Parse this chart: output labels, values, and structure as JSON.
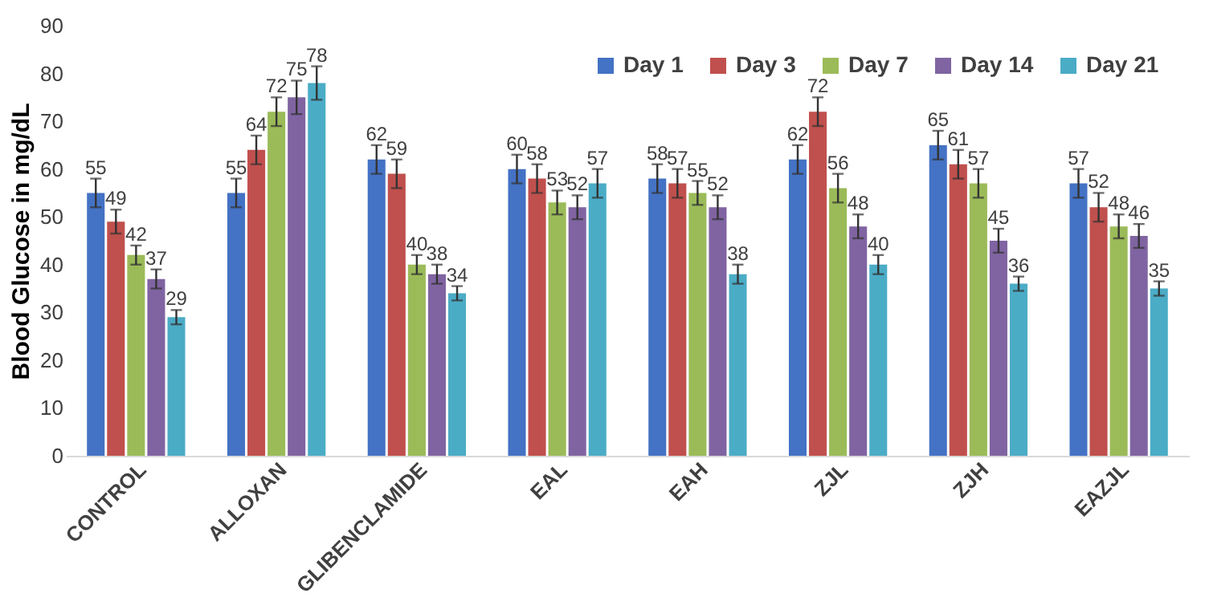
{
  "chart_data": {
    "type": "bar",
    "ylabel": "Blood Glucose in mg/dL",
    "categories": [
      "CONTROL",
      "ALLOXAN",
      "GLIBENCLAMIDE",
      "EAL",
      "EAH",
      "ZJL",
      "ZJH",
      "EAZJL"
    ],
    "series": [
      {
        "name": "Day 1",
        "color": "#4472c4",
        "values": [
          55,
          55,
          62,
          60,
          58,
          62,
          65,
          57
        ],
        "errors": [
          3,
          3,
          3,
          3,
          3,
          3,
          3,
          3
        ]
      },
      {
        "name": "Day 3",
        "color": "#c0504d",
        "values": [
          49,
          64,
          59,
          58,
          57,
          72,
          61,
          52
        ],
        "errors": [
          2.5,
          3,
          3,
          3,
          3,
          3,
          3,
          3
        ]
      },
      {
        "name": "Day 7",
        "color": "#9bbb59",
        "values": [
          42,
          72,
          40,
          53,
          55,
          56,
          57,
          48
        ],
        "errors": [
          2,
          3,
          2,
          2.5,
          2.5,
          3,
          3,
          2.5
        ]
      },
      {
        "name": "Day 14",
        "color": "#8064a2",
        "values": [
          37,
          75,
          38,
          52,
          52,
          48,
          45,
          46
        ],
        "errors": [
          2,
          3.5,
          2,
          2.5,
          2.5,
          2.5,
          2.5,
          2.5
        ]
      },
      {
        "name": "Day 21",
        "color": "#4bacc6",
        "values": [
          29,
          78,
          34,
          57,
          38,
          40,
          36,
          35
        ],
        "errors": [
          1.5,
          3.5,
          1.5,
          3,
          2,
          2,
          1.5,
          1.5
        ]
      }
    ],
    "ylim": [
      0,
      90
    ],
    "yticks": [
      0,
      10,
      20,
      30,
      40,
      50,
      60,
      70,
      80,
      90
    ],
    "legend": "top right",
    "data_labels": true
  }
}
